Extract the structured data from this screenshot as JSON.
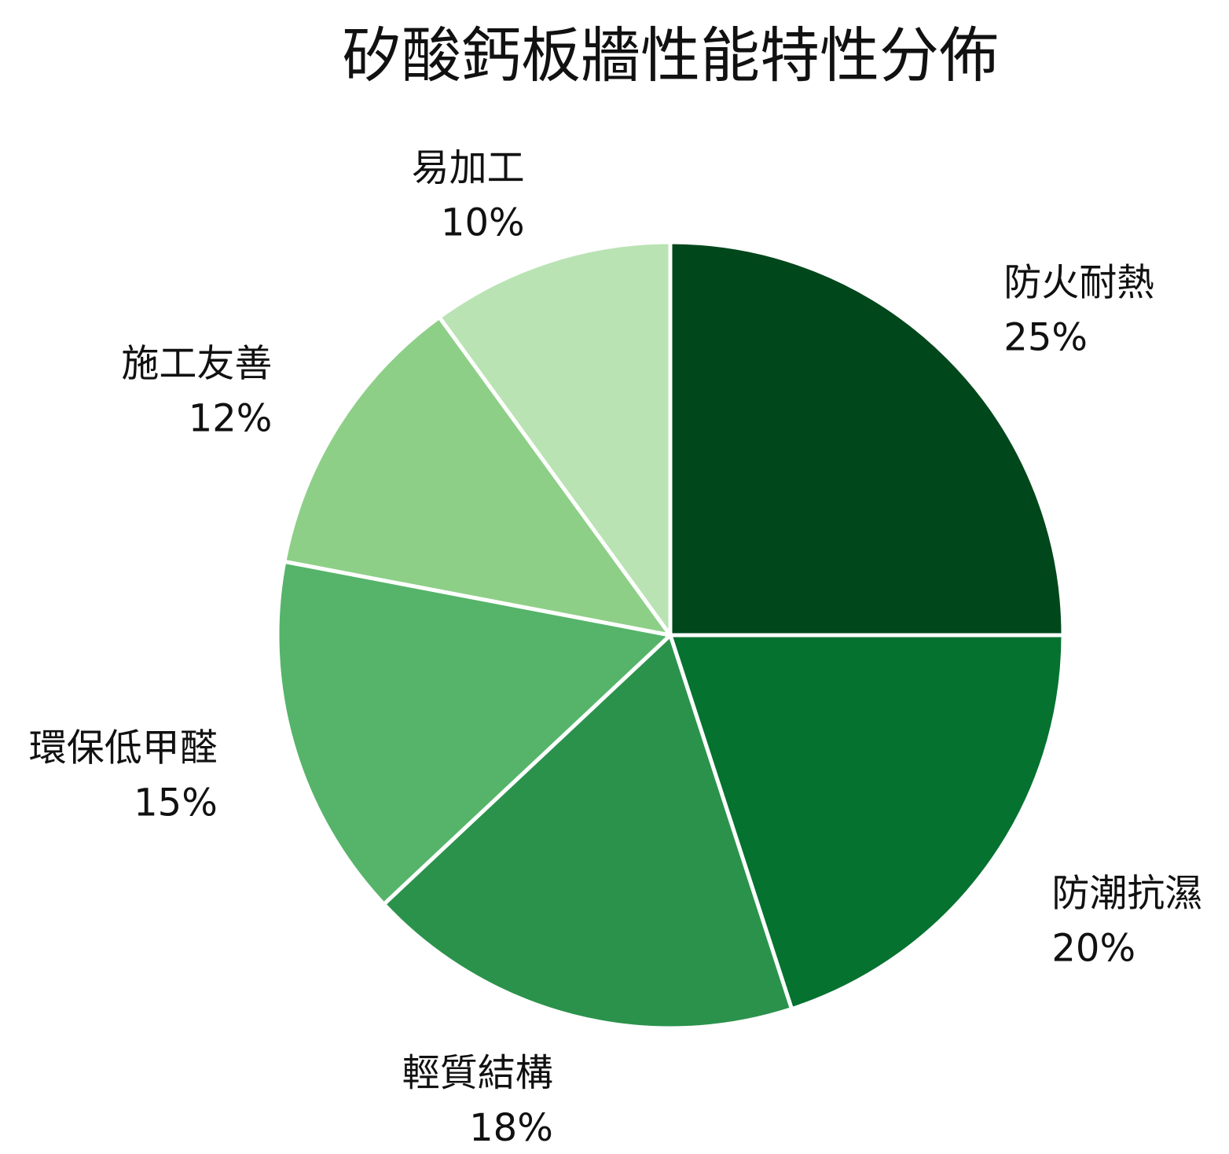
{
  "chart_data": {
    "type": "pie",
    "title": "矽酸鈣板牆性能特性分佈",
    "slices": [
      {
        "label": "防火耐熱",
        "value": 25,
        "value_label": "25%",
        "color": "#00471b"
      },
      {
        "label": "防潮抗濕",
        "value": 20,
        "value_label": "20%",
        "color": "#057230"
      },
      {
        "label": "輕質結構",
        "value": 18,
        "value_label": "18%",
        "color": "#2b924c"
      },
      {
        "label": "環保低甲醛",
        "value": 15,
        "value_label": "15%",
        "color": "#55b46a"
      },
      {
        "label": "施工友善",
        "value": 12,
        "value_label": "12%",
        "color": "#8ecf88"
      },
      {
        "label": "易加工",
        "value": 10,
        "value_label": "10%",
        "color": "#b9e3b3"
      }
    ],
    "start_angle": "12 o'clock",
    "direction": "clockwise",
    "slice_border_color": "#ffffff"
  }
}
